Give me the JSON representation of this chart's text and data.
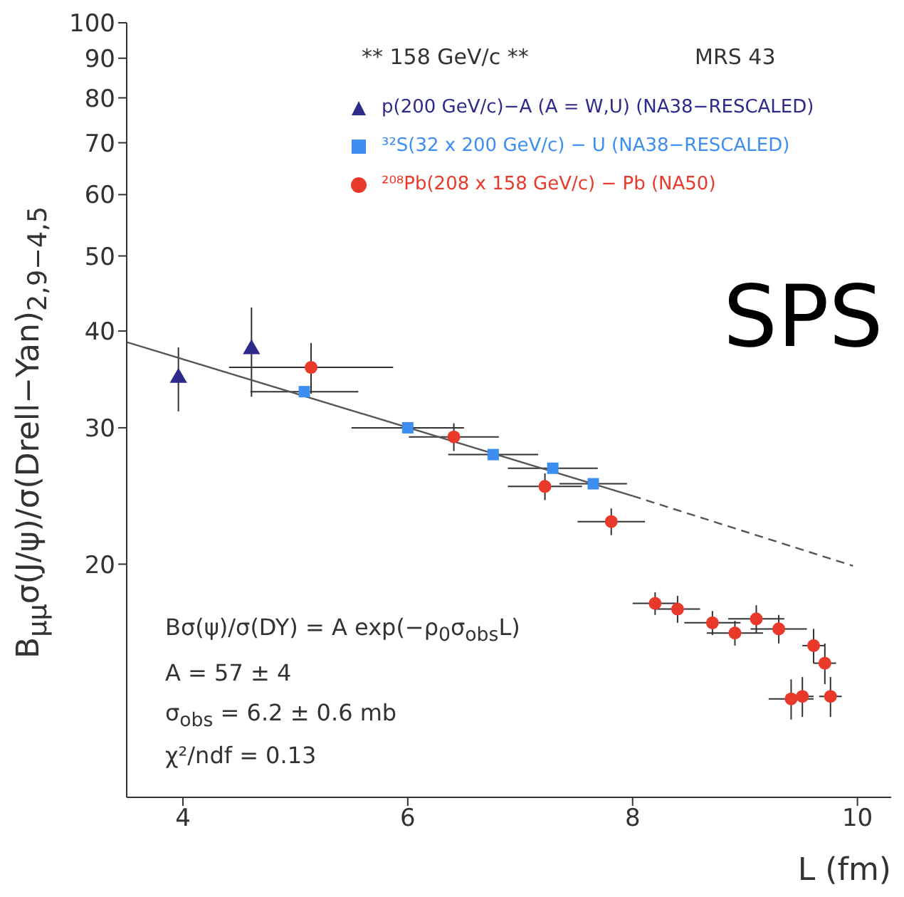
{
  "chart_data": {
    "type": "scatter",
    "xlabel": "L (fm)",
    "ylabel": "B$_{μμ}$σ(J/ψ)/σ(Drell−Yan)$_{2,9−4,5}$",
    "log": "y",
    "xlim": [
      3.5,
      10.3
    ],
    "xticks": [
      4,
      6,
      8,
      10
    ],
    "ylim": [
      10,
      100
    ],
    "yticks": [
      20,
      30,
      40,
      50,
      60,
      70,
      80,
      90,
      100
    ],
    "grid": false,
    "legend": "top right",
    "annotations": [
      "** 158 GeV/c **",
      "MRS 43",
      "SPS",
      "Bσ(ψ)/σ(DY) = A exp(−ρ$_{0}$σ$_{obs}$L)",
      "A = 57 ± 4",
      "σ$_{obs}$ = 6.2 ± 0.6 mb",
      "χ²/ndf = 0.13"
    ],
    "series": [
      {
        "name": "p(200 GeV/c)−A (A = W,U) (NA38−RESCALED)",
        "color": "#2e2a8a",
        "marker": "triangle",
        "x": [
          3.96,
          4.61
        ],
        "values": [
          34.8,
          37.9
        ],
        "errors": [
          3.3,
          5
        ],
        "xerrors": [
          null,
          null
        ]
      },
      {
        "name": "³²S(32 x 200 GeV/c) − U (NA38−RESCALED)",
        "color": "#3d8ef0",
        "marker": "square",
        "x": [
          5.08,
          6.0,
          6.76,
          7.29,
          7.65
        ],
        "values": [
          33.4,
          30,
          27.7,
          26.6,
          25.4
        ],
        "xerrors": [
          0.48,
          0.5,
          0.4,
          0.4,
          0.3
        ]
      },
      {
        "name": "²⁰⁸Pb(208 x 158 GeV/c) − Pb (NA50)",
        "color": "#e8392a",
        "marker": "circle",
        "x": [
          5.14,
          6.41,
          7.22,
          7.81,
          8.2,
          8.4,
          8.71,
          8.91,
          9.1,
          9.3,
          9.61,
          9.71,
          9.41,
          9.51,
          9.76
        ],
        "values": [
          35.9,
          29.2,
          25.2,
          22.7,
          17.8,
          17.5,
          16.8,
          16.3,
          17.0,
          16.5,
          15.7,
          14.9,
          13.4,
          13.5,
          13.5
        ],
        "errors": [
          2.7,
          1.2,
          1.0,
          0.9,
          0.6,
          0.7,
          0.6,
          0.6,
          0.7,
          0.7,
          0.8,
          0.9,
          0.8,
          0.8,
          0.8
        ],
        "xerrors": [
          0.73,
          0.4,
          0.33,
          0.3,
          0.2,
          0.2,
          0.25,
          0.25,
          0.25,
          0.25,
          0.1,
          0.1,
          0.2,
          0.1,
          0.1
        ]
      },
      {
        "type": "line",
        "color": "#555555",
        "line_style": "solid",
        "marker": "none",
        "x": [
          3.5,
          8
        ],
        "values": [
          38.7,
          24.5
        ]
      },
      {
        "type": "line",
        "color": "#555555",
        "line_style": "dashed",
        "marker": "none",
        "x": [
          8,
          9.96
        ],
        "values": [
          24.5,
          19.9
        ]
      }
    ]
  }
}
